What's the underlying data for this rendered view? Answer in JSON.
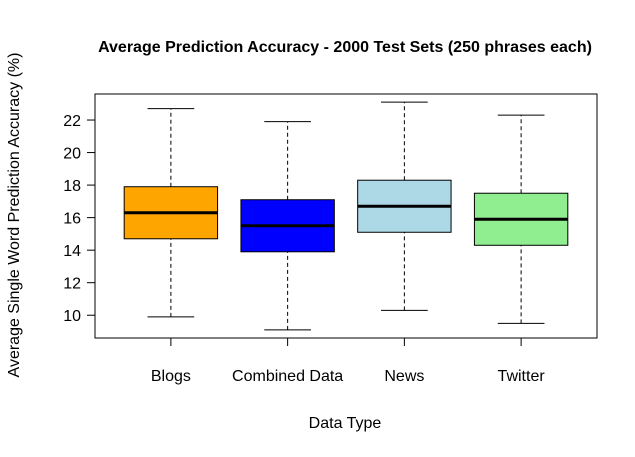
{
  "chart_data": {
    "type": "boxplot",
    "title": "Average Prediction Accuracy - 2000 Test Sets (250 phrases each)",
    "xlabel": "Data Type",
    "ylabel": "Average Single Word Prediction Accuracy (%)",
    "ylim": [
      8.6,
      23.6
    ],
    "yticks": [
      10,
      12,
      14,
      16,
      18,
      20,
      22
    ],
    "grid": false,
    "categories": [
      "Blogs",
      "Combined Data",
      "News",
      "Twitter"
    ],
    "boxes": [
      {
        "category": "Blogs",
        "min": 9.9,
        "q1": 14.7,
        "median": 16.3,
        "q3": 17.9,
        "max": 22.7,
        "color": "#FFA500"
      },
      {
        "category": "Combined Data",
        "min": 9.1,
        "q1": 13.9,
        "median": 15.5,
        "q3": 17.1,
        "max": 21.9,
        "color": "#0000FF"
      },
      {
        "category": "News",
        "min": 10.3,
        "q1": 15.1,
        "median": 16.7,
        "q3": 18.3,
        "max": 23.1,
        "color": "#ADD8E6"
      },
      {
        "category": "Twitter",
        "min": 9.5,
        "q1": 14.3,
        "median": 15.9,
        "q3": 17.5,
        "max": 22.3,
        "color": "#90EE90"
      }
    ]
  }
}
